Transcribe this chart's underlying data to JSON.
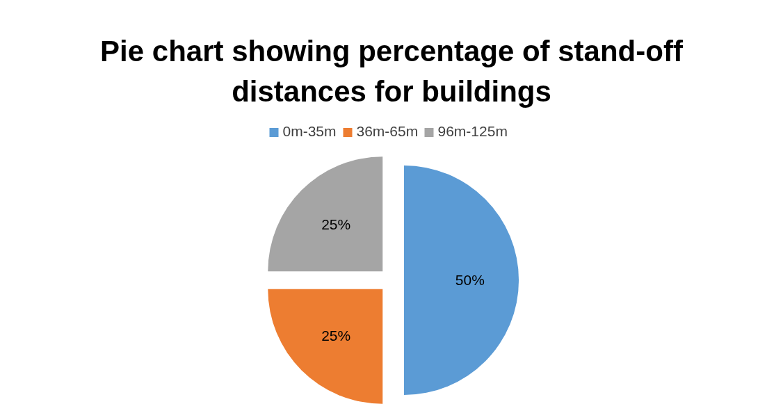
{
  "chart_data": {
    "type": "pie",
    "title": "Pie chart showing percentage of stand-off distances for buildings",
    "categories": [
      "0m-35m",
      "36m-65m",
      "96m-125m"
    ],
    "values": [
      50,
      25,
      25
    ],
    "colors": [
      "#5b9bd5",
      "#ed7d31",
      "#a5a5a5"
    ],
    "value_labels": [
      "50%",
      "25%",
      "25%"
    ],
    "legend": "top"
  }
}
